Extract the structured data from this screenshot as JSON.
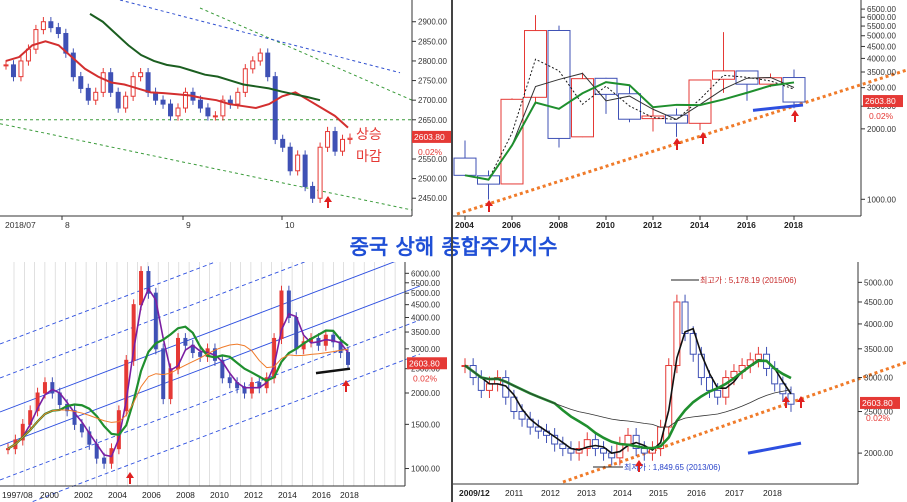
{
  "title": "중국 상해 종합주가지수",
  "colors": {
    "up": "#e53935",
    "down": "#3f51b5",
    "ma_red": "#d32f2f",
    "ma_green": "#1f8f2e",
    "ma_dark": "#1b5e20",
    "trend_orange": "#f07b2a",
    "channel_blue": "#2d4fe0",
    "guide_green": "#3a9b3a",
    "title": "#1f4fd6",
    "price_label_bg": "#e53935"
  },
  "chart_data": [
    {
      "id": "daily",
      "type": "candlestick",
      "x_tick_labels": [
        "2018/07",
        "8",
        "9",
        "10"
      ],
      "y_tick_labels": [
        "2900.00",
        "2850.00",
        "2800.00",
        "2750.00",
        "2700.00",
        "2650.00",
        "2600.00",
        "2550.00",
        "2500.00",
        "2450.00"
      ],
      "ylim": [
        2420,
        2935
      ],
      "last_price_label": "2603.80",
      "change_label": "0.02%",
      "annotation": [
        "상승",
        "마감"
      ],
      "series": [
        {
          "kind": "candles",
          "values": [
            2790,
            2760,
            2800,
            2830,
            2880,
            2900,
            2885,
            2870,
            2820,
            2760,
            2730,
            2700,
            2720,
            2770,
            2720,
            2680,
            2710,
            2760,
            2770,
            2720,
            2700,
            2690,
            2660,
            2680,
            2720,
            2700,
            2680,
            2660,
            2660,
            2700,
            2690,
            2720,
            2780,
            2800,
            2820,
            2760,
            2600,
            2580,
            2520,
            2560,
            2480,
            2450,
            2580,
            2620,
            2570,
            2600,
            2603
          ]
        },
        {
          "kind": "ma",
          "name": "",
          "values": [
            2800,
            2810,
            2840,
            2850,
            2840,
            2810,
            2780,
            2760,
            2745,
            2740,
            2730,
            2720,
            2718,
            2715,
            2712,
            2705,
            2700,
            2690,
            2685,
            2680,
            2690,
            2710,
            2720,
            2700,
            2680,
            2660,
            2630
          ]
        },
        {
          "kind": "ma",
          "name": "",
          "values": [
            2920,
            2900,
            2870,
            2840,
            2815,
            2800,
            2790,
            2785,
            2775,
            2765,
            2760,
            2750,
            2740,
            2735,
            2730,
            2722,
            2715,
            2708,
            2700
          ]
        }
      ]
    },
    {
      "id": "yearly",
      "type": "candlestick",
      "x_tick_labels": [
        "2004",
        "2006",
        "2008",
        "2010",
        "2012",
        "2014",
        "2016",
        "2018"
      ],
      "y_tick_labels": [
        "6500.00",
        "6000.00",
        "5500.00",
        "5000.00",
        "4500.00",
        "4000.00",
        "3500.00",
        "3000.00",
        "2500.00",
        "2000.00",
        "1000.00"
      ],
      "last_price_label": "2603.80",
      "change_label": "0.02%",
      "candles": [
        {
          "year": "2004",
          "open": 1500,
          "close": 1266,
          "high": 1783,
          "low": 1259
        },
        {
          "year": "2005",
          "open": 1260,
          "close": 1161,
          "high": 1328,
          "low": 998
        },
        {
          "year": "2006",
          "open": 1163,
          "close": 2675,
          "high": 2698,
          "low": 1161
        },
        {
          "year": "2007",
          "open": 2728,
          "close": 5262,
          "high": 6124,
          "low": 2541
        },
        {
          "year": "2008",
          "open": 5265,
          "close": 1820,
          "high": 5522,
          "low": 1664
        },
        {
          "year": "2009",
          "open": 1849,
          "close": 3277,
          "high": 3478,
          "low": 1844
        },
        {
          "year": "2010",
          "open": 3289,
          "close": 2808,
          "high": 3306,
          "low": 2319
        },
        {
          "year": "2011",
          "open": 2825,
          "close": 2199,
          "high": 3067,
          "low": 2134
        },
        {
          "year": "2012",
          "open": 2212,
          "close": 2269,
          "high": 2478,
          "low": 1949
        },
        {
          "year": "2013",
          "open": 2289,
          "close": 2116,
          "high": 2444,
          "low": 1849
        },
        {
          "year": "2014",
          "open": 2112,
          "close": 3235,
          "high": 3239,
          "low": 1974
        },
        {
          "year": "2015",
          "open": 3258,
          "close": 3539,
          "high": 5178,
          "low": 2850
        },
        {
          "year": "2016",
          "open": 3536,
          "close": 3104,
          "high": 3538,
          "low": 2638
        },
        {
          "year": "2017",
          "open": 3105,
          "close": 3307,
          "high": 3450,
          "low": 3016
        },
        {
          "year": "2018",
          "open": 3314,
          "close": 2604,
          "high": 3587,
          "low": 2449
        }
      ]
    },
    {
      "id": "long_term",
      "type": "candlestick",
      "x_tick_labels": [
        "1997/08",
        "2000",
        "2002",
        "2004",
        "2006",
        "2008",
        "2010",
        "2012",
        "2014",
        "2016",
        "2018"
      ],
      "y_tick_labels": [
        "6000.00",
        "5500.00",
        "5000.00",
        "4500.00",
        "4000.00",
        "3500.00",
        "3000.00",
        "2500.00",
        "2000.00",
        "1500.00",
        "1000.00"
      ],
      "last_price_label": "2603.80",
      "change_label": "0.02%"
    },
    {
      "id": "monthly",
      "type": "candlestick",
      "x_tick_labels": [
        "2009/12",
        "2011",
        "2012",
        "2013",
        "2014",
        "2015",
        "2016",
        "2017",
        "2018"
      ],
      "y_tick_labels": [
        "5000.00",
        "4500.00",
        "4000.00",
        "3500.00",
        "3000.00",
        "2500.00",
        "2000.00"
      ],
      "last_price_label": "2603.80",
      "change_label": "0.02%",
      "annotations": [
        "최고가 : 5,178.19 (2015/06)",
        "최저가 : 1,849.65 (2013/06)"
      ]
    }
  ]
}
